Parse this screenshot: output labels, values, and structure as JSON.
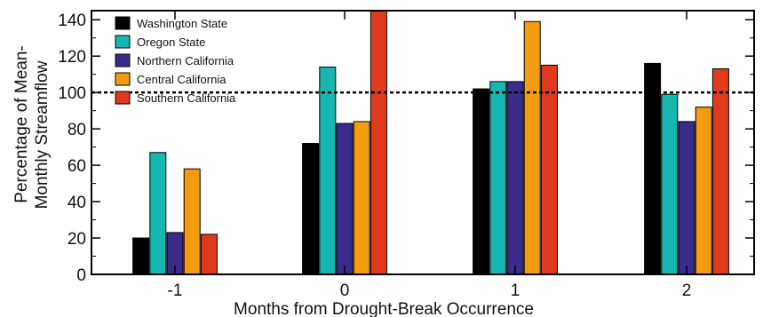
{
  "chart_data": {
    "type": "bar",
    "xlabel": "Months from Drought-Break Occurrence",
    "ylabel_lines": [
      "Percentage of Mean-",
      "Monthly Streamflow"
    ],
    "categories": [
      "-1",
      "0",
      "1",
      "2"
    ],
    "ylim": [
      0,
      145
    ],
    "yticks": [
      0,
      20,
      40,
      60,
      80,
      100,
      120,
      140
    ],
    "reference_line": {
      "value": 100,
      "style": "dotted"
    },
    "legend_position": "top-left",
    "grid": false,
    "series": [
      {
        "name": "Washington State",
        "color": "#000000",
        "values": [
          20,
          72,
          102,
          116
        ]
      },
      {
        "name": "Oregon State",
        "color": "#16b7b0",
        "values": [
          67,
          114,
          106,
          99
        ]
      },
      {
        "name": "Northern California",
        "color": "#3b2c8c",
        "values": [
          23,
          83,
          106,
          84
        ]
      },
      {
        "name": "Central California",
        "color": "#f39c12",
        "values": [
          58,
          84,
          139,
          92
        ]
      },
      {
        "name": "Southern California",
        "color": "#e03a1e",
        "values": [
          22,
          145,
          115,
          113
        ]
      }
    ]
  }
}
